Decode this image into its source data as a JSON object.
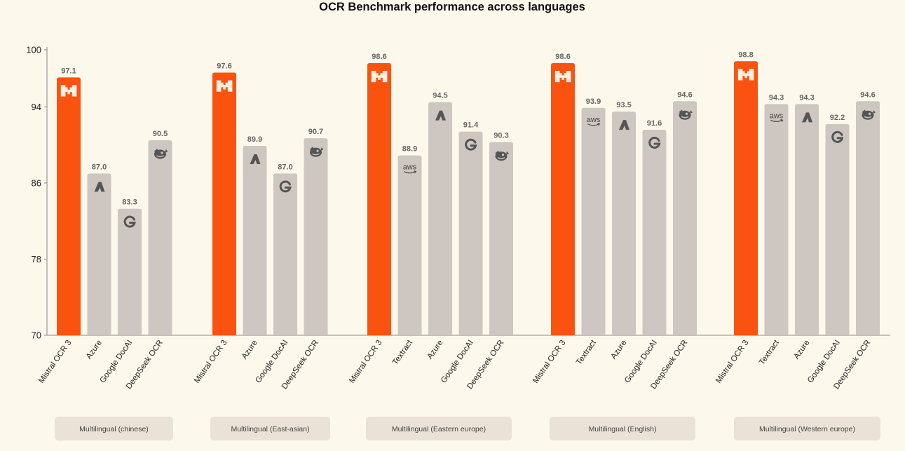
{
  "chart_data": {
    "type": "bar",
    "title": "OCR Benchmark performance across languages",
    "ylim": [
      70,
      100
    ],
    "yticks": [
      70,
      78,
      86,
      94,
      100
    ],
    "xlabel": "",
    "ylabel": "",
    "highlight_color": "#fa5310",
    "bar_color": "#cec6c0",
    "groups": [
      {
        "label": "Multilingual (chinese)",
        "bars": [
          {
            "name": "Mistral OCR 3",
            "value": 97.1,
            "value_label": "97.1",
            "icon": "mistral-icon",
            "highlight": true
          },
          {
            "name": "Azure",
            "value": 87.0,
            "value_label": "87.0",
            "icon": "azure-icon",
            "highlight": false
          },
          {
            "name": "Google DocAI",
            "value": 83.3,
            "value_label": "83.3",
            "icon": "google-icon",
            "highlight": false
          },
          {
            "name": "DeepSeek OCR",
            "value": 90.5,
            "value_label": "90.5",
            "icon": "deepseek-icon",
            "highlight": false
          }
        ]
      },
      {
        "label": "Multilingual (East-asian)",
        "bars": [
          {
            "name": "Mistral OCR 3",
            "value": 97.6,
            "value_label": "97.6",
            "icon": "mistral-icon",
            "highlight": true
          },
          {
            "name": "Azure",
            "value": 89.9,
            "value_label": "89.9",
            "icon": "azure-icon",
            "highlight": false
          },
          {
            "name": "Google DocAI",
            "value": 87.0,
            "value_label": "87.0",
            "icon": "google-icon",
            "highlight": false
          },
          {
            "name": "DeepSeek OCR",
            "value": 90.7,
            "value_label": "90.7",
            "icon": "deepseek-icon",
            "highlight": false
          }
        ]
      },
      {
        "label": "Multilingual (Eastern europe)",
        "bars": [
          {
            "name": "Mistral OCR 3",
            "value": 98.6,
            "value_label": "98.6",
            "icon": "mistral-icon",
            "highlight": true
          },
          {
            "name": "Textract",
            "value": 88.9,
            "value_label": "88.9",
            "icon": "aws-icon",
            "highlight": false
          },
          {
            "name": "Azure",
            "value": 94.5,
            "value_label": "94.5",
            "icon": "azure-icon",
            "highlight": false
          },
          {
            "name": "Google DocAI",
            "value": 91.4,
            "value_label": "91.4",
            "icon": "google-icon",
            "highlight": false
          },
          {
            "name": "DeepSeek OCR",
            "value": 90.3,
            "value_label": "90.3",
            "icon": "deepseek-icon",
            "highlight": false
          }
        ]
      },
      {
        "label": "Multilingual (English)",
        "bars": [
          {
            "name": "Mistral OCR 3",
            "value": 98.6,
            "value_label": "98.6",
            "icon": "mistral-icon",
            "highlight": true
          },
          {
            "name": "Textract",
            "value": 93.9,
            "value_label": "93.9",
            "icon": "aws-icon",
            "highlight": false
          },
          {
            "name": "Azure",
            "value": 93.5,
            "value_label": "93.5",
            "icon": "azure-icon",
            "highlight": false
          },
          {
            "name": "Google DocAI",
            "value": 91.6,
            "value_label": "91.6",
            "icon": "google-icon",
            "highlight": false
          },
          {
            "name": "DeepSeek OCR",
            "value": 94.6,
            "value_label": "94.6",
            "icon": "deepseek-icon",
            "highlight": false
          }
        ]
      },
      {
        "label": "Multilingual (Western europe)",
        "bars": [
          {
            "name": "Mistral OCR 3",
            "value": 98.8,
            "value_label": "98.8",
            "icon": "mistral-icon",
            "highlight": true
          },
          {
            "name": "Textract",
            "value": 94.3,
            "value_label": "94.3",
            "icon": "aws-icon",
            "highlight": false
          },
          {
            "name": "Azure",
            "value": 94.3,
            "value_label": "94.3",
            "icon": "azure-icon",
            "highlight": false
          },
          {
            "name": "Google DocAI",
            "value": 92.2,
            "value_label": "92.2",
            "icon": "google-icon",
            "highlight": false
          },
          {
            "name": "DeepSeek OCR",
            "value": 94.6,
            "value_label": "94.6",
            "icon": "deepseek-icon",
            "highlight": false
          }
        ]
      }
    ]
  }
}
